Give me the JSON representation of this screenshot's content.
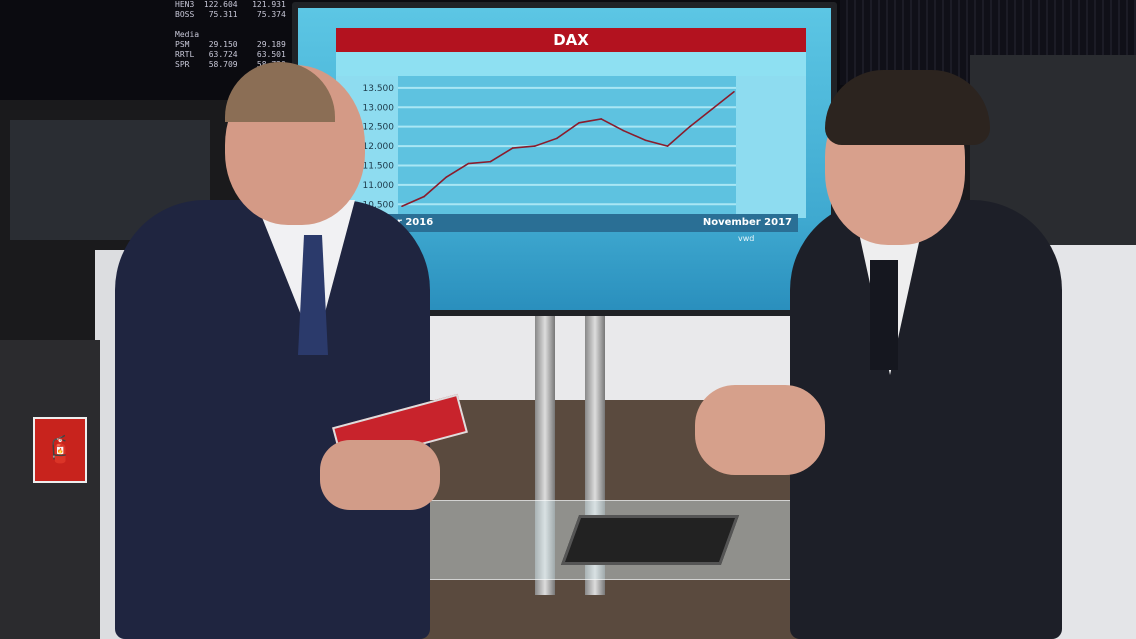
{
  "scene": {
    "ticker_board": {
      "lines": [
        "HEN3  122.604   121.931",
        "BOSS   75.311    75.374",
        "",
        "Media",
        "PSM    29.150    29.189",
        "RRTL   63.724    63.501",
        "SPR    58.709    58.720"
      ]
    },
    "fire_sign_icon": "fire-extinguisher-icon",
    "screen_logo": "vwd"
  },
  "chart_data": {
    "type": "line",
    "title": "DAX",
    "xlabel": "",
    "ylabel": "",
    "x_start_label": "November 2016",
    "x_end_label": "November 2017",
    "ylim": [
      10250,
      13600
    ],
    "yticks": [
      "10.500",
      "11.000",
      "11.500",
      "12.000",
      "12.500",
      "13.000",
      "13.500"
    ],
    "ytick_values": [
      10500,
      11000,
      11500,
      12000,
      12500,
      13000,
      13500
    ],
    "grid": true,
    "line_color": "#8a1c2c",
    "x": [
      "2016-11",
      "2016-12a",
      "2016-12b",
      "2017-01",
      "2017-02",
      "2017-03a",
      "2017-03b",
      "2017-04",
      "2017-05",
      "2017-06",
      "2017-07",
      "2017-08",
      "2017-09",
      "2017-10",
      "2017-11a",
      "2017-11b"
    ],
    "values": [
      10450,
      10700,
      11200,
      11550,
      11600,
      11950,
      12000,
      12200,
      12600,
      12700,
      12400,
      12150,
      12000,
      12500,
      12950,
      13400
    ]
  }
}
